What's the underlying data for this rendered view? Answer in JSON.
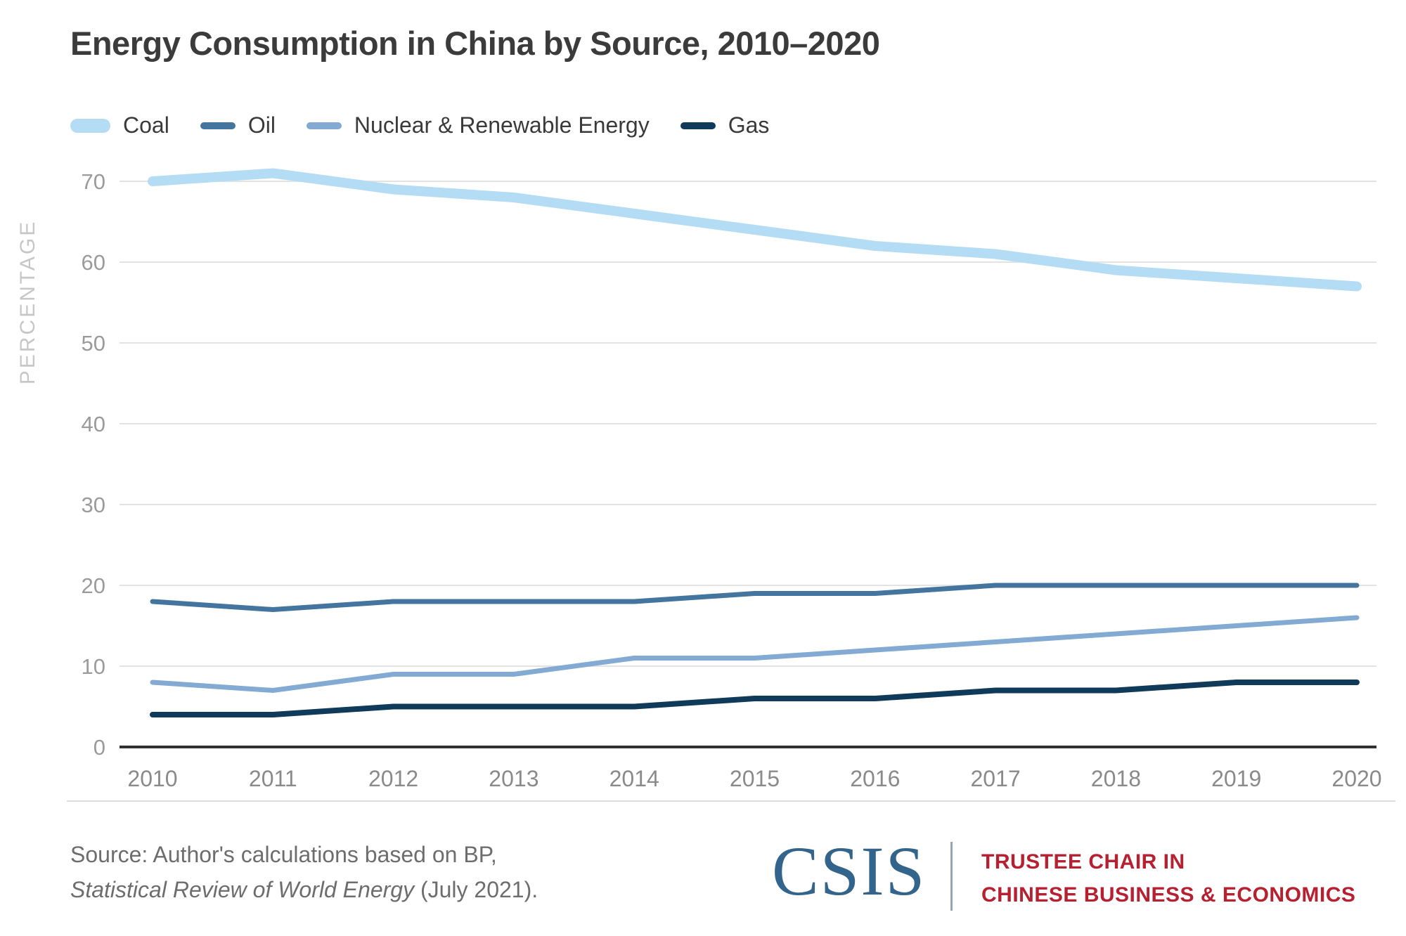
{
  "header": {
    "title": "Energy Consumption in China by Source, 2010–2020"
  },
  "chart_data": {
    "type": "line",
    "title": "Energy Consumption in China by Source, 2010–2020",
    "xlabel": "",
    "ylabel": "PERCENTAGE",
    "x": [
      2010,
      2011,
      2012,
      2013,
      2014,
      2015,
      2016,
      2017,
      2018,
      2019,
      2020
    ],
    "xtick_labels": [
      "2010",
      "2011",
      "2012",
      "2013",
      "2014",
      "2015",
      "2016",
      "2017",
      "2018",
      "2019",
      "2020"
    ],
    "yticks": [
      0,
      10,
      20,
      30,
      40,
      50,
      60,
      70
    ],
    "ylim": [
      0,
      75
    ],
    "grid": "horizontal",
    "legend_position": "top-left",
    "series": [
      {
        "name": "Coal",
        "color": "#b4ddf5",
        "line_width": 14,
        "values": [
          70,
          71,
          69,
          68,
          66,
          64,
          62,
          61,
          59,
          58,
          57
        ]
      },
      {
        "name": "Oil",
        "color": "#44759e",
        "line_width": 7,
        "values": [
          18,
          17,
          18,
          18,
          18,
          19,
          19,
          20,
          20,
          20,
          20
        ]
      },
      {
        "name": "Nuclear & Renewable Energy",
        "color": "#83aad3",
        "line_width": 7,
        "values": [
          8,
          7,
          9,
          9,
          11,
          11,
          12,
          13,
          14,
          15,
          16
        ]
      },
      {
        "name": "Gas",
        "color": "#0f3a5a",
        "line_width": 8,
        "values": [
          4,
          4,
          5,
          5,
          5,
          6,
          6,
          7,
          7,
          8,
          8
        ]
      }
    ],
    "colors": {
      "grid": "#e3e3e3",
      "axis": "#303030",
      "tick_label": "#9b9b9b",
      "year_label": "#8a8a8a",
      "ylabel_text": "#c7c7c7"
    }
  },
  "footer": {
    "source_prefix": "Source: Author's calculations based on BP,",
    "source_italic": "Statistical Review of World Energy",
    "source_suffix": " (July 2021).",
    "logo_text": "CSIS",
    "logo_color": "#33658c",
    "program_line1": "TRUSTEE CHAIR IN",
    "program_line2": "CHINESE BUSINESS & ECONOMICS",
    "program_color": "#b72031"
  }
}
